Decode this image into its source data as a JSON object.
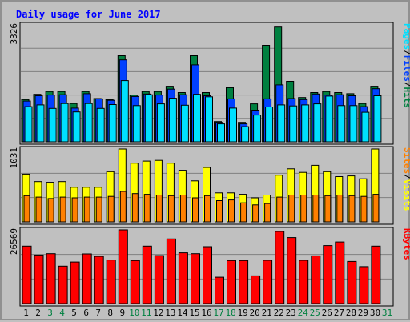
{
  "chart_data": [
    {
      "type": "bar",
      "title": "Daily usage for June 2017",
      "ymax_label": "3326",
      "legend": [
        {
          "text": "Pages",
          "color": "#00e0ff"
        },
        {
          "text": "/",
          "color": "#000000"
        },
        {
          "text": "Files",
          "color": "#0040ff"
        },
        {
          "text": "/",
          "color": "#000000"
        },
        {
          "text": "Hits",
          "color": "#008040"
        }
      ],
      "ylim": [
        0,
        3326
      ],
      "series": [
        {
          "name": "Hits",
          "color": "#008040",
          "values": [
            1200,
            1350,
            1430,
            1430,
            1090,
            1430,
            1230,
            1200,
            2450,
            1330,
            1430,
            1430,
            1580,
            1400,
            2450,
            1400,
            576,
            1540,
            553,
            1080,
            2745,
            3265,
            1720,
            1260,
            1400,
            1430,
            1400,
            1370,
            1090,
            1580
          ]
        },
        {
          "name": "Files",
          "color": "#0040ff",
          "values": [
            1160,
            1310,
            1330,
            1340,
            960,
            1370,
            1220,
            1180,
            2330,
            1290,
            1360,
            1330,
            1500,
            1340,
            2190,
            1310,
            553,
            1220,
            510,
            900,
            1220,
            1620,
            1230,
            1200,
            1360,
            1330,
            1340,
            1310,
            1000,
            1510
          ]
        },
        {
          "name": "Pages",
          "color": "#00e0ff",
          "values": [
            1000,
            1050,
            950,
            1090,
            850,
            1090,
            950,
            1060,
            1740,
            1030,
            1340,
            1080,
            1240,
            1040,
            1350,
            1280,
            510,
            960,
            430,
            760,
            990,
            1050,
            1020,
            1050,
            1080,
            1300,
            1030,
            1030,
            840,
            1310
          ]
        }
      ]
    },
    {
      "type": "bar",
      "ymax_label": "1031",
      "legend": [
        {
          "text": "Sites",
          "color": "#ff8000"
        },
        {
          "text": "/",
          "color": "#000000"
        },
        {
          "text": "Visits",
          "color": "#ffff00"
        }
      ],
      "ylim": [
        0,
        1031
      ],
      "series": [
        {
          "name": "Visits",
          "color": "#ffff00",
          "values": [
            675,
            570,
            560,
            570,
            490,
            490,
            490,
            710,
            1031,
            830,
            860,
            870,
            830,
            730,
            580,
            770,
            410,
            410,
            390,
            340,
            380,
            660,
            750,
            700,
            800,
            710,
            640,
            650,
            610,
            1031
          ]
        },
        {
          "name": "Sites",
          "color": "#ff8000",
          "values": [
            370,
            350,
            330,
            350,
            340,
            350,
            350,
            360,
            430,
            400,
            390,
            380,
            370,
            380,
            340,
            370,
            300,
            310,
            270,
            240,
            260,
            350,
            380,
            380,
            380,
            370,
            380,
            370,
            360,
            390
          ]
        }
      ]
    },
    {
      "type": "bar",
      "ymax_label": "26569",
      "legend": [
        {
          "text": "KBytes",
          "color": "#ff0000"
        }
      ],
      "ylim": [
        0,
        26569
      ],
      "series": [
        {
          "name": "KBytes",
          "color": "#ff0000",
          "values": [
            20700,
            17500,
            18000,
            13500,
            15000,
            17900,
            17000,
            15700,
            26569,
            15500,
            20700,
            17300,
            23300,
            18300,
            18000,
            20500,
            9500,
            15500,
            15500,
            10000,
            15600,
            26000,
            23800,
            15600,
            17200,
            20900,
            22200,
            15200,
            13300,
            20700
          ]
        }
      ]
    }
  ],
  "x_labels": [
    {
      "day": "1",
      "weekend": false
    },
    {
      "day": "2",
      "weekend": false
    },
    {
      "day": "3",
      "weekend": true
    },
    {
      "day": "4",
      "weekend": true
    },
    {
      "day": "5",
      "weekend": false
    },
    {
      "day": "6",
      "weekend": false
    },
    {
      "day": "7",
      "weekend": false
    },
    {
      "day": "8",
      "weekend": false
    },
    {
      "day": "9",
      "weekend": false
    },
    {
      "day": "10",
      "weekend": true
    },
    {
      "day": "11",
      "weekend": true
    },
    {
      "day": "12",
      "weekend": false
    },
    {
      "day": "13",
      "weekend": false
    },
    {
      "day": "14",
      "weekend": false
    },
    {
      "day": "15",
      "weekend": false
    },
    {
      "day": "16",
      "weekend": false
    },
    {
      "day": "17",
      "weekend": true
    },
    {
      "day": "18",
      "weekend": true
    },
    {
      "day": "19",
      "weekend": false
    },
    {
      "day": "20",
      "weekend": false
    },
    {
      "day": "21",
      "weekend": false
    },
    {
      "day": "22",
      "weekend": false
    },
    {
      "day": "23",
      "weekend": false
    },
    {
      "day": "24",
      "weekend": true
    },
    {
      "day": "25",
      "weekend": true
    },
    {
      "day": "26",
      "weekend": false
    },
    {
      "day": "27",
      "weekend": false
    },
    {
      "day": "28",
      "weekend": false
    },
    {
      "day": "29",
      "weekend": false
    },
    {
      "day": "30",
      "weekend": false
    },
    {
      "day": "31",
      "weekend": true
    }
  ],
  "colors": {
    "background": "#c0c0c0",
    "title": "#0000ff",
    "plot_border": "#000000",
    "gridline": "#808080",
    "weekday_label": "#000000",
    "weekend_label": "#008040"
  }
}
